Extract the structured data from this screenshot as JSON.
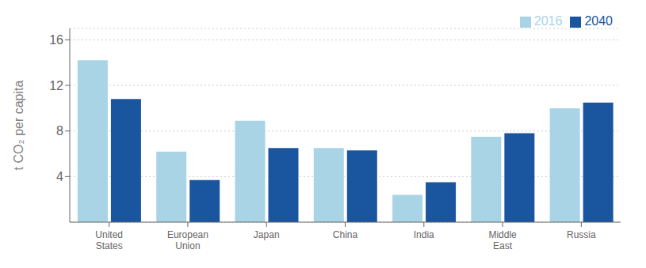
{
  "chart_data": {
    "type": "bar",
    "categories": [
      "United\nStates",
      "European\nUnion",
      "Japan",
      "China",
      "India",
      "Middle\nEast",
      "Russia"
    ],
    "series": [
      {
        "name": "2016",
        "color": "#a8d4e6",
        "values": [
          14.2,
          6.2,
          8.9,
          6.5,
          2.4,
          7.5,
          10.0
        ]
      },
      {
        "name": "2040",
        "color": "#1a55a0",
        "values": [
          10.8,
          3.7,
          6.5,
          6.3,
          3.5,
          7.8,
          10.5
        ]
      }
    ],
    "ylabel": "t CO₂ per capita",
    "ylim": [
      0,
      17
    ],
    "yticks": [
      4,
      8,
      12,
      16
    ],
    "grid": true,
    "legend": "upper right"
  }
}
